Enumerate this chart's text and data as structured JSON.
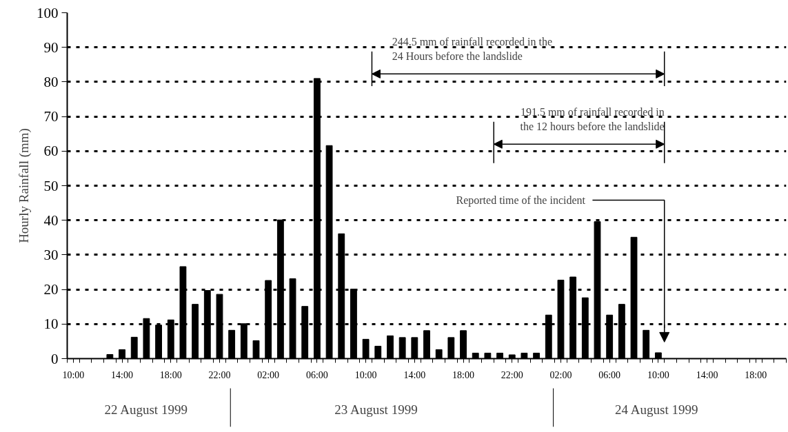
{
  "chart_data": {
    "type": "bar",
    "ylabel": "Hourly Rainfall (mm)",
    "x": [
      "1999-08-22T10:00",
      "1999-08-22T11:00",
      "1999-08-22T12:00",
      "1999-08-22T13:00",
      "1999-08-22T14:00",
      "1999-08-22T15:00",
      "1999-08-22T16:00",
      "1999-08-22T17:00",
      "1999-08-22T18:00",
      "1999-08-22T19:00",
      "1999-08-22T20:00",
      "1999-08-22T21:00",
      "1999-08-22T22:00",
      "1999-08-22T23:00",
      "1999-08-23T00:00",
      "1999-08-23T01:00",
      "1999-08-23T02:00",
      "1999-08-23T03:00",
      "1999-08-23T04:00",
      "1999-08-23T05:00",
      "1999-08-23T06:00",
      "1999-08-23T07:00",
      "1999-08-23T08:00",
      "1999-08-23T09:00",
      "1999-08-23T10:00",
      "1999-08-23T11:00",
      "1999-08-23T12:00",
      "1999-08-23T13:00",
      "1999-08-23T14:00",
      "1999-08-23T15:00",
      "1999-08-23T16:00",
      "1999-08-23T17:00",
      "1999-08-23T18:00",
      "1999-08-23T19:00",
      "1999-08-23T20:00",
      "1999-08-23T21:00",
      "1999-08-23T22:00",
      "1999-08-23T23:00",
      "1999-08-24T00:00",
      "1999-08-24T01:00",
      "1999-08-24T02:00",
      "1999-08-24T03:00",
      "1999-08-24T04:00",
      "1999-08-24T05:00",
      "1999-08-24T06:00",
      "1999-08-24T07:00",
      "1999-08-24T08:00",
      "1999-08-24T09:00",
      "1999-08-24T10:00"
    ],
    "values": [
      0,
      0,
      0,
      1.2,
      2.6,
      6.2,
      11.6,
      9.7,
      11.2,
      26.6,
      15.7,
      19.7,
      18.6,
      8.2,
      10.1,
      5.2,
      22.6,
      40.1,
      23.1,
      15.1,
      81.0,
      61.6,
      36.1,
      20.1,
      5.6,
      3.6,
      6.6,
      6.1,
      6.1,
      8.1,
      2.6,
      6.1,
      8.1,
      1.6,
      1.6,
      1.6,
      1.1,
      1.6,
      1.6,
      12.6,
      22.7,
      23.6,
      17.6,
      39.6,
      12.6,
      15.7,
      35.1,
      8.2,
      1.7
    ],
    "color": "#000000",
    "xlim": [
      "1999-08-22T09:30",
      "1999-08-24T20:30"
    ],
    "xticks": [
      {
        "value": "1999-08-22T10:00",
        "label": "10:00"
      },
      {
        "value": "1999-08-22T14:00",
        "label": "14:00"
      },
      {
        "value": "1999-08-22T18:00",
        "label": "18:00"
      },
      {
        "value": "1999-08-22T22:00",
        "label": "22:00"
      },
      {
        "value": "1999-08-23T02:00",
        "label": "02:00"
      },
      {
        "value": "1999-08-23T06:00",
        "label": "06:00"
      },
      {
        "value": "1999-08-23T10:00",
        "label": "10:00"
      },
      {
        "value": "1999-08-23T14:00",
        "label": "14:00"
      },
      {
        "value": "1999-08-23T18:00",
        "label": "18:00"
      },
      {
        "value": "1999-08-23T22:00",
        "label": "22:00"
      },
      {
        "value": "1999-08-24T02:00",
        "label": "02:00"
      },
      {
        "value": "1999-08-24T06:00",
        "label": "06:00"
      },
      {
        "value": "1999-08-24T10:00",
        "label": "10:00"
      },
      {
        "value": "1999-08-24T14:00",
        "label": "14:00"
      },
      {
        "value": "1999-08-24T18:00",
        "label": "18:00"
      },
      {
        "value": "1999-08-22T09:30",
        "label": null
      },
      {
        "value": "1999-08-22T10:30",
        "label": null
      },
      {
        "value": "1999-08-22T11:30",
        "label": null
      },
      {
        "value": "1999-08-22T12:30",
        "label": null
      },
      {
        "value": "1999-08-22T13:30",
        "label": null
      },
      {
        "value": "1999-08-22T14:30",
        "label": null
      },
      {
        "value": "1999-08-22T15:30",
        "label": null
      },
      {
        "value": "1999-08-22T16:30",
        "label": null
      },
      {
        "value": "1999-08-22T17:30",
        "label": null
      },
      {
        "value": "1999-08-22T18:30",
        "label": null
      },
      {
        "value": "1999-08-22T19:30",
        "label": null
      },
      {
        "value": "1999-08-22T20:30",
        "label": null
      },
      {
        "value": "1999-08-22T21:30",
        "label": null
      },
      {
        "value": "1999-08-22T22:30",
        "label": null
      },
      {
        "value": "1999-08-22T23:30",
        "label": null
      },
      {
        "value": "1999-08-23T00:30",
        "label": null
      },
      {
        "value": "1999-08-23T01:30",
        "label": null
      },
      {
        "value": "1999-08-23T02:30",
        "label": null
      },
      {
        "value": "1999-08-23T03:30",
        "label": null
      },
      {
        "value": "1999-08-23T04:30",
        "label": null
      },
      {
        "value": "1999-08-23T05:30",
        "label": null
      },
      {
        "value": "1999-08-23T06:30",
        "label": null
      },
      {
        "value": "1999-08-23T07:30",
        "label": null
      },
      {
        "value": "1999-08-23T08:30",
        "label": null
      },
      {
        "value": "1999-08-23T09:30",
        "label": null
      },
      {
        "value": "1999-08-23T10:30",
        "label": null
      },
      {
        "value": "1999-08-23T11:30",
        "label": null
      },
      {
        "value": "1999-08-23T12:30",
        "label": null
      },
      {
        "value": "1999-08-23T13:30",
        "label": null
      },
      {
        "value": "1999-08-23T14:30",
        "label": null
      },
      {
        "value": "1999-08-23T15:30",
        "label": null
      },
      {
        "value": "1999-08-23T16:30",
        "label": null
      },
      {
        "value": "1999-08-23T17:30",
        "label": null
      },
      {
        "value": "1999-08-23T18:30",
        "label": null
      },
      {
        "value": "1999-08-23T19:30",
        "label": null
      },
      {
        "value": "1999-08-23T20:30",
        "label": null
      },
      {
        "value": "1999-08-23T21:30",
        "label": null
      },
      {
        "value": "1999-08-23T22:30",
        "label": null
      },
      {
        "value": "1999-08-23T23:30",
        "label": null
      },
      {
        "value": "1999-08-24T00:30",
        "label": null
      },
      {
        "value": "1999-08-24T01:30",
        "label": null
      },
      {
        "value": "1999-08-24T02:30",
        "label": null
      },
      {
        "value": "1999-08-24T03:30",
        "label": null
      },
      {
        "value": "1999-08-24T04:30",
        "label": null
      },
      {
        "value": "1999-08-24T05:30",
        "label": null
      },
      {
        "value": "1999-08-24T06:30",
        "label": null
      },
      {
        "value": "1999-08-24T07:30",
        "label": null
      },
      {
        "value": "1999-08-24T08:30",
        "label": null
      },
      {
        "value": "1999-08-24T09:30",
        "label": null
      },
      {
        "value": "1999-08-24T10:30",
        "label": null
      },
      {
        "value": "1999-08-24T11:30",
        "label": null
      },
      {
        "value": "1999-08-24T12:30",
        "label": null
      },
      {
        "value": "1999-08-24T13:30",
        "label": null
      },
      {
        "value": "1999-08-24T14:30",
        "label": null
      },
      {
        "value": "1999-08-24T15:30",
        "label": null
      },
      {
        "value": "1999-08-24T16:30",
        "label": null
      },
      {
        "value": "1999-08-24T17:30",
        "label": null
      },
      {
        "value": "1999-08-24T18:30",
        "label": null
      },
      {
        "value": "1999-08-24T19:30",
        "label": null
      },
      {
        "value": "1999-08-24T20:30",
        "label": null
      }
    ],
    "ylim": [
      0,
      100
    ],
    "yticks": [
      0,
      10,
      20,
      30,
      40,
      50,
      60,
      70,
      80,
      90,
      100
    ],
    "grid": "y",
    "ref_lines": [
      {
        "axis": "x",
        "value": "1999-08-23T10:30",
        "label": "244.5 mm of rainfall recorded in the\n24 Hours before the landslide"
      },
      {
        "axis": "x",
        "value": "1999-08-23T20:30",
        "label": "191.5 mm of rainfall recorded in\nthe 12 hours before the landslide"
      },
      {
        "axis": "x",
        "value": "1999-08-24T10:30",
        "label": "Reported time of the incident"
      }
    ],
    "annotations": [
      "22 August 1999",
      "23 August 1999",
      "24 August 1999"
    ]
  }
}
